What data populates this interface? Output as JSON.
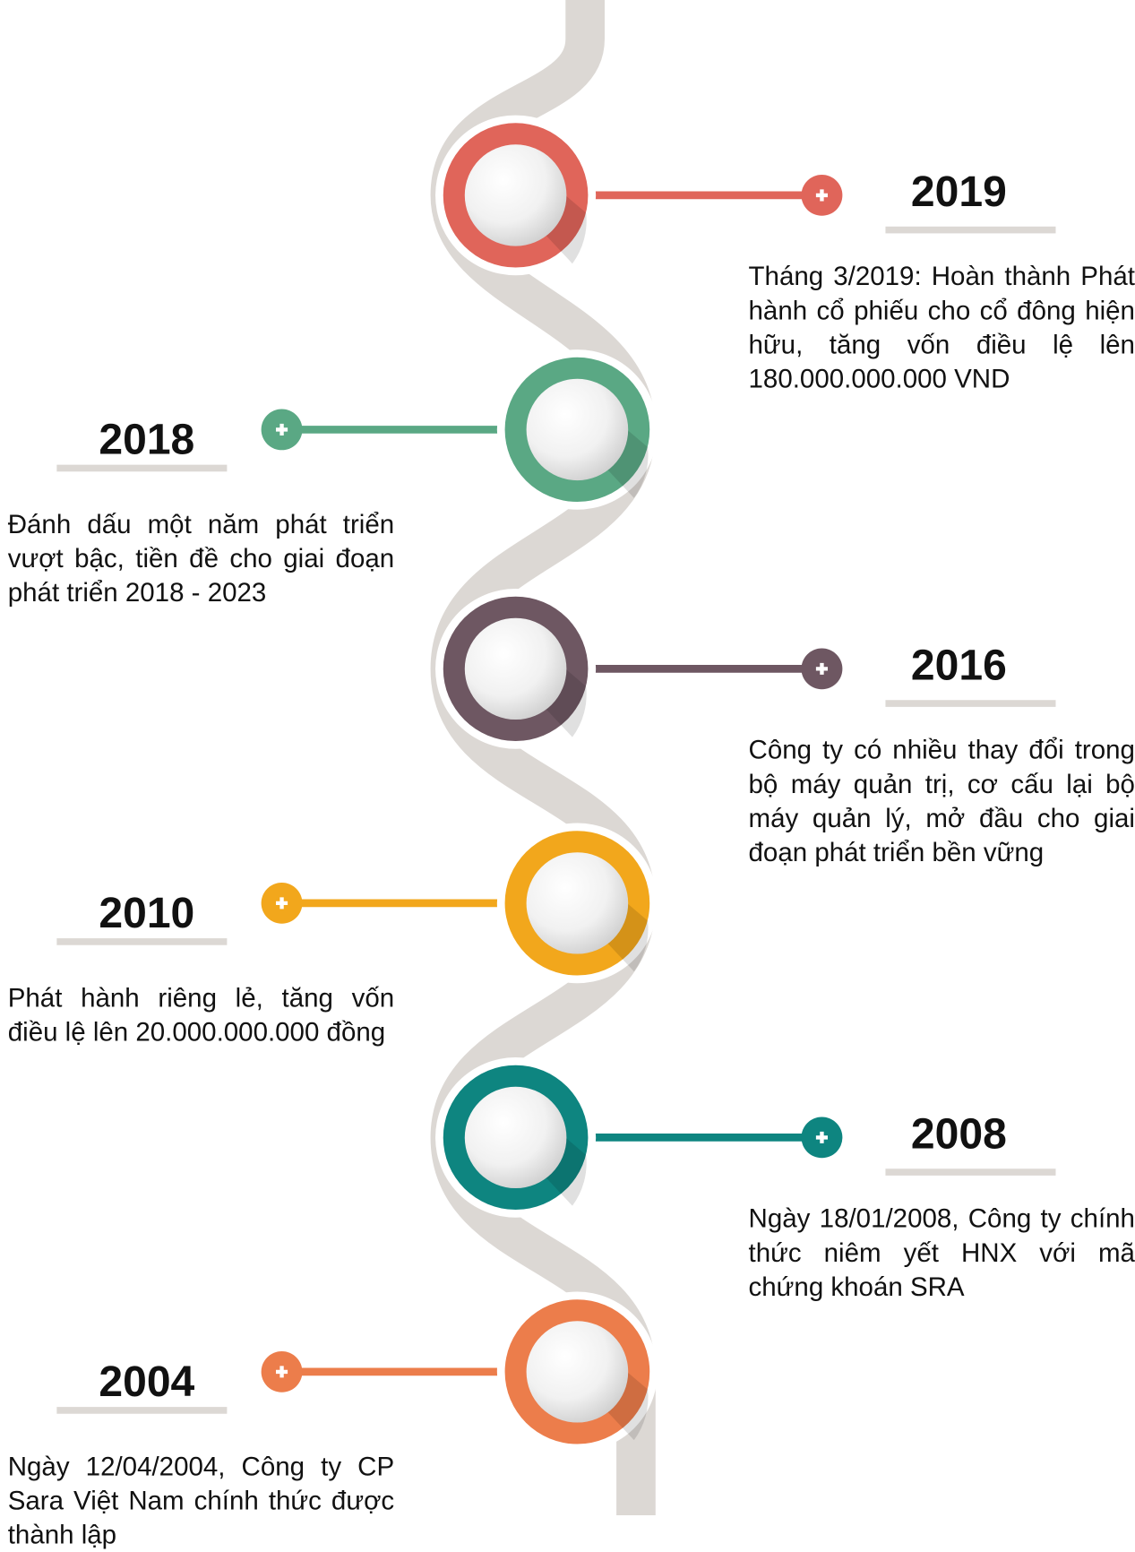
{
  "events": [
    {
      "year": "2019",
      "color": "#e0655a",
      "description": "Tháng 3/2019: Hoàn thành Phát hành cổ phiếu cho cổ đông hiện hữu, tăng vốn điều lệ lên 180.000.000.000 VND"
    },
    {
      "year": "2018",
      "color": "#5aa884",
      "description": "Đánh dấu một năm phát triển vượt bậc, tiền đề cho giai đoạn phát triển 2018 - 2023"
    },
    {
      "year": "2016",
      "color": "#6e5762",
      "description": "Công ty có nhiều thay đổi trong bộ máy quản trị, cơ cấu lại bộ máy quản lý, mở đầu cho giai đoạn phát triển bền vững"
    },
    {
      "year": "2010",
      "color": "#f2a71c",
      "description": "Phát hành riêng lẻ, tăng vốn điều lệ lên 20.000.000.000 đồng"
    },
    {
      "year": "2008",
      "color": "#0e8580",
      "description": "Ngày 18/01/2008, Công ty chính thức niêm yết HNX với mã chứng khoán SRA"
    },
    {
      "year": "2004",
      "color": "#ec7d4b",
      "description": "Ngày 12/04/2004, Công ty CP Sara Việt Nam chính thức được thành lập"
    }
  ]
}
